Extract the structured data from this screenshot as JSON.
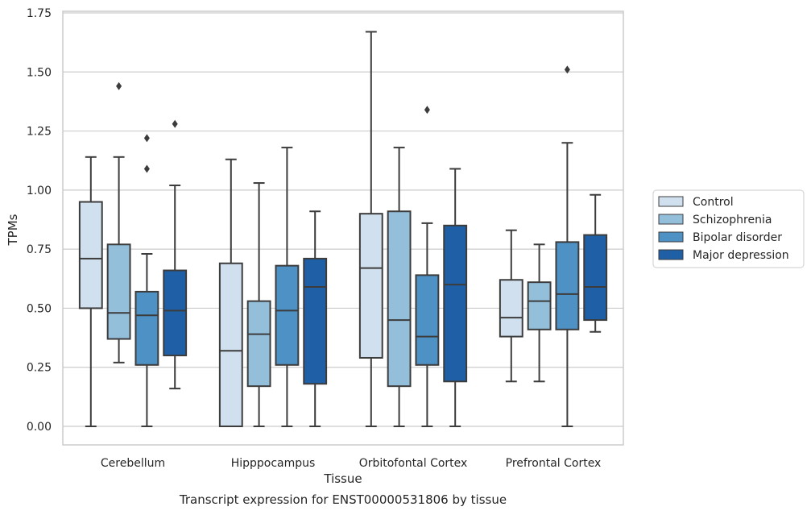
{
  "chart_data": {
    "type": "box",
    "title": "",
    "caption": "Transcript expression for ENST00000531806 by tissue",
    "xlabel": "Tissue",
    "ylabel": "TPMs",
    "ylim": [
      -0.08,
      1.76
    ],
    "yticks": [
      "0.00",
      "0.25",
      "0.50",
      "0.75",
      "1.00",
      "1.25",
      "1.50",
      "1.75"
    ],
    "ytick_values": [
      0,
      0.25,
      0.5,
      0.75,
      1.0,
      1.25,
      1.5,
      1.75
    ],
    "grid": "horizontal",
    "legend_position": "right",
    "categories": [
      "Cerebellum",
      "Hipppocampus",
      "Orbitofontal Cortex",
      "Prefrontal Cortex"
    ],
    "series": [
      {
        "name": "Control",
        "color": "#d1e0ef",
        "boxes": [
          {
            "whisker_low": 0.0,
            "q1": 0.5,
            "median": 0.71,
            "q3": 0.95,
            "whisker_high": 1.14,
            "outliers": []
          },
          {
            "whisker_low": 0.0,
            "q1": 0.0,
            "median": 0.32,
            "q3": 0.69,
            "whisker_high": 1.13,
            "outliers": []
          },
          {
            "whisker_low": 0.0,
            "q1": 0.29,
            "median": 0.67,
            "q3": 0.9,
            "whisker_high": 1.67,
            "outliers": []
          },
          {
            "whisker_low": 0.19,
            "q1": 0.38,
            "median": 0.46,
            "q3": 0.62,
            "whisker_high": 0.83,
            "outliers": []
          }
        ]
      },
      {
        "name": "Schizophrenia",
        "color": "#93bfdb",
        "boxes": [
          {
            "whisker_low": 0.27,
            "q1": 0.37,
            "median": 0.48,
            "q3": 0.77,
            "whisker_high": 1.14,
            "outliers": [
              1.44
            ]
          },
          {
            "whisker_low": 0.0,
            "q1": 0.17,
            "median": 0.39,
            "q3": 0.53,
            "whisker_high": 1.03,
            "outliers": []
          },
          {
            "whisker_low": 0.0,
            "q1": 0.17,
            "median": 0.45,
            "q3": 0.91,
            "whisker_high": 1.18,
            "outliers": []
          },
          {
            "whisker_low": 0.19,
            "q1": 0.41,
            "median": 0.53,
            "q3": 0.61,
            "whisker_high": 0.77,
            "outliers": []
          }
        ]
      },
      {
        "name": "Bipolar disorder",
        "color": "#4e91c5",
        "boxes": [
          {
            "whisker_low": 0.0,
            "q1": 0.26,
            "median": 0.47,
            "q3": 0.57,
            "whisker_high": 0.73,
            "outliers": [
              1.09,
              1.22
            ]
          },
          {
            "whisker_low": 0.0,
            "q1": 0.26,
            "median": 0.49,
            "q3": 0.68,
            "whisker_high": 1.18,
            "outliers": []
          },
          {
            "whisker_low": 0.0,
            "q1": 0.26,
            "median": 0.38,
            "q3": 0.64,
            "whisker_high": 0.86,
            "outliers": [
              1.34
            ]
          },
          {
            "whisker_low": 0.0,
            "q1": 0.41,
            "median": 0.56,
            "q3": 0.78,
            "whisker_high": 1.2,
            "outliers": [
              1.51
            ]
          }
        ]
      },
      {
        "name": "Major depression",
        "color": "#1f5fa6",
        "boxes": [
          {
            "whisker_low": 0.16,
            "q1": 0.3,
            "median": 0.49,
            "q3": 0.66,
            "whisker_high": 1.02,
            "outliers": [
              1.28
            ]
          },
          {
            "whisker_low": 0.0,
            "q1": 0.18,
            "median": 0.59,
            "q3": 0.71,
            "whisker_high": 0.91,
            "outliers": []
          },
          {
            "whisker_low": 0.0,
            "q1": 0.19,
            "median": 0.6,
            "q3": 0.85,
            "whisker_high": 1.09,
            "outliers": []
          },
          {
            "whisker_low": 0.4,
            "q1": 0.45,
            "median": 0.59,
            "q3": 0.81,
            "whisker_high": 0.98,
            "outliers": []
          }
        ]
      }
    ]
  }
}
